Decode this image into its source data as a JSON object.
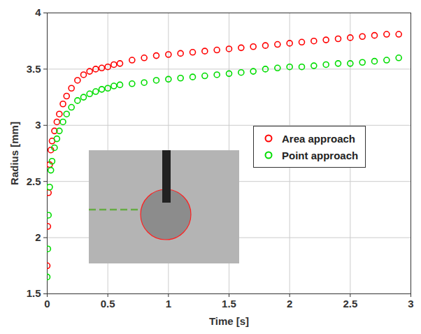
{
  "chart_data": {
    "type": "scatter",
    "xlabel": "Time [s]",
    "ylabel": "Radius [mm]",
    "xlim": [
      0,
      3
    ],
    "xticks": [
      0,
      0.5,
      1,
      1.5,
      2,
      2.5,
      3
    ],
    "ylim": [
      1.5,
      4
    ],
    "yticks": [
      1.5,
      2,
      2.5,
      3,
      3.5,
      4
    ],
    "grid": true,
    "legend": "right",
    "series": [
      {
        "name": "Area approach",
        "color": "#ff0000",
        "marker": "circle",
        "x": [
          0,
          0.005,
          0.01,
          0.02,
          0.03,
          0.04,
          0.06,
          0.08,
          0.1,
          0.13,
          0.16,
          0.2,
          0.25,
          0.3,
          0.35,
          0.4,
          0.45,
          0.5,
          0.55,
          0.6,
          0.7,
          0.8,
          0.9,
          1.0,
          1.1,
          1.2,
          1.3,
          1.4,
          1.5,
          1.6,
          1.7,
          1.8,
          1.9,
          2.0,
          2.1,
          2.2,
          2.3,
          2.4,
          2.5,
          2.6,
          2.7,
          2.8,
          2.9
        ],
        "values": [
          1.75,
          2.1,
          2.4,
          2.65,
          2.78,
          2.86,
          2.95,
          3.03,
          3.1,
          3.19,
          3.26,
          3.33,
          3.4,
          3.45,
          3.48,
          3.5,
          3.51,
          3.52,
          3.54,
          3.55,
          3.58,
          3.6,
          3.62,
          3.63,
          3.64,
          3.65,
          3.66,
          3.67,
          3.68,
          3.69,
          3.7,
          3.71,
          3.72,
          3.73,
          3.74,
          3.75,
          3.76,
          3.77,
          3.78,
          3.79,
          3.8,
          3.81,
          3.81
        ]
      },
      {
        "name": "Point approach",
        "color": "#00dd00",
        "marker": "circle",
        "x": [
          0,
          0.005,
          0.01,
          0.02,
          0.03,
          0.04,
          0.06,
          0.08,
          0.1,
          0.13,
          0.16,
          0.2,
          0.25,
          0.3,
          0.35,
          0.4,
          0.45,
          0.5,
          0.55,
          0.6,
          0.7,
          0.8,
          0.9,
          1.0,
          1.1,
          1.2,
          1.3,
          1.4,
          1.5,
          1.6,
          1.7,
          1.8,
          1.9,
          2.0,
          2.1,
          2.2,
          2.3,
          2.4,
          2.5,
          2.6,
          2.7,
          2.8,
          2.9
        ],
        "values": [
          1.65,
          1.9,
          2.2,
          2.45,
          2.6,
          2.68,
          2.8,
          2.88,
          2.95,
          3.03,
          3.1,
          3.16,
          3.22,
          3.25,
          3.28,
          3.3,
          3.32,
          3.33,
          3.35,
          3.36,
          3.37,
          3.38,
          3.4,
          3.41,
          3.42,
          3.43,
          3.44,
          3.45,
          3.46,
          3.47,
          3.48,
          3.5,
          3.51,
          3.52,
          3.52,
          3.53,
          3.54,
          3.55,
          3.55,
          3.56,
          3.57,
          3.58,
          3.6
        ]
      }
    ]
  }
}
